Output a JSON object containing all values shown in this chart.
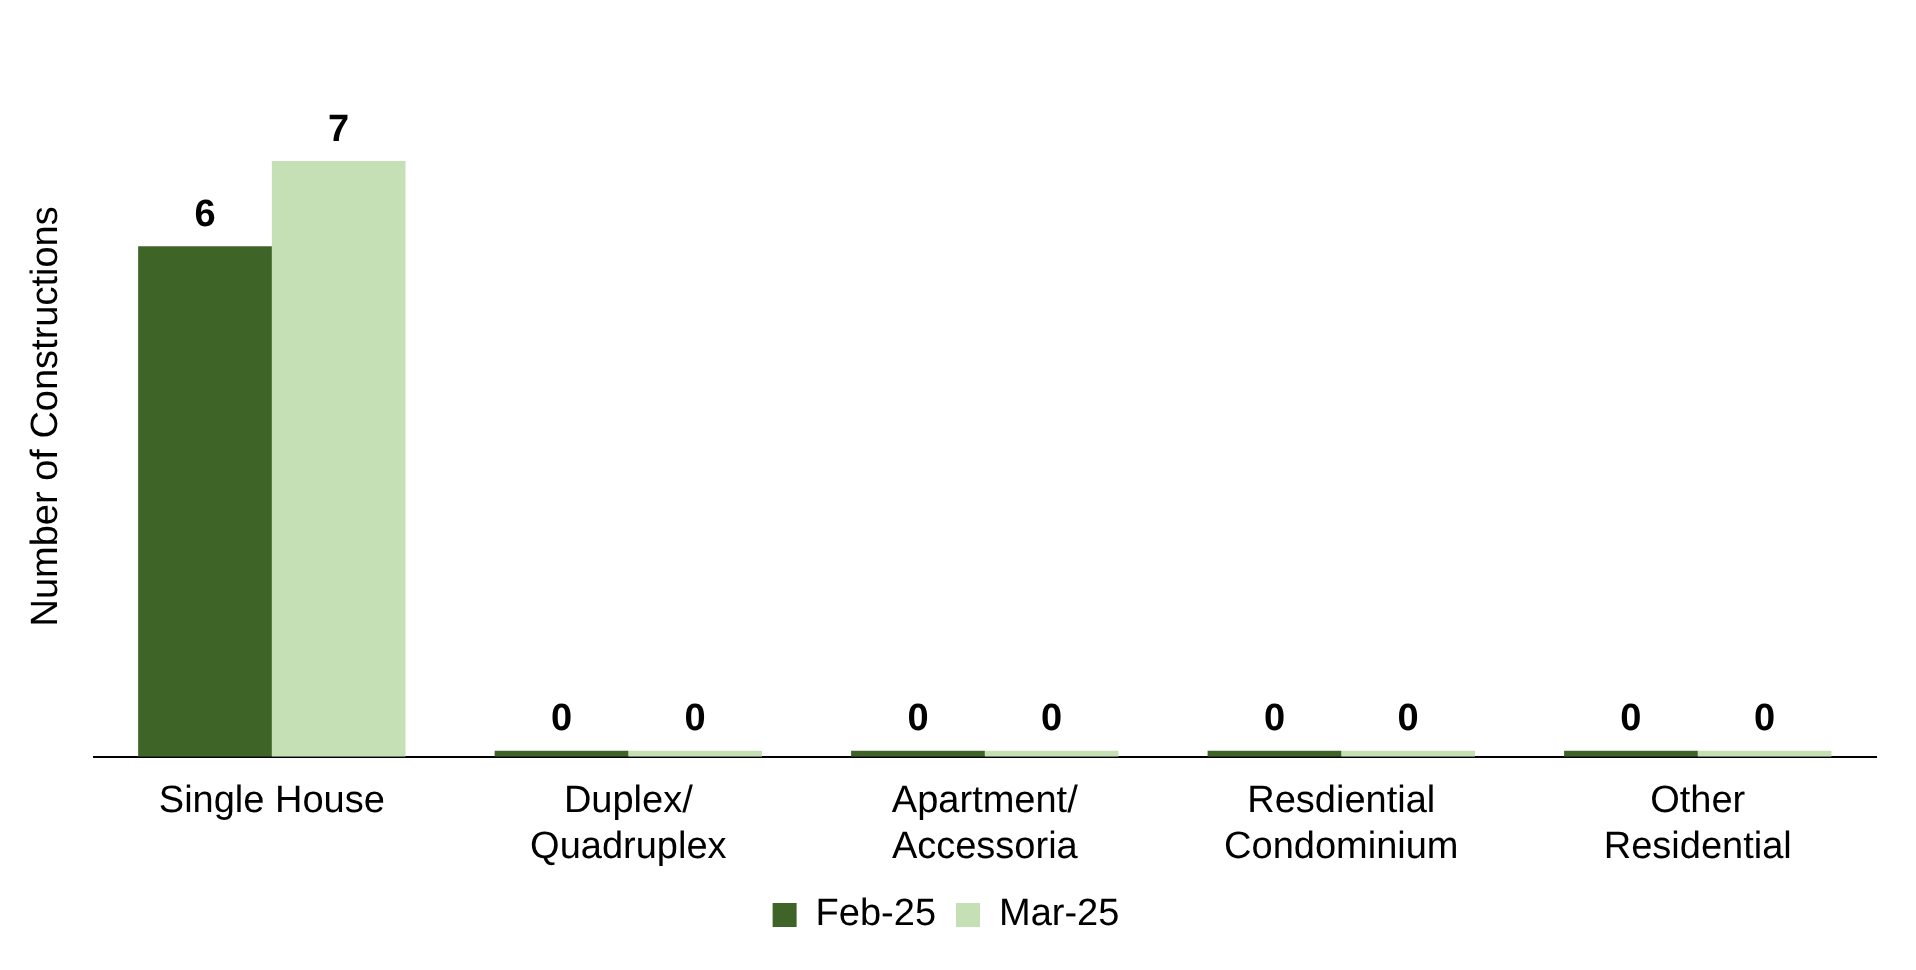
{
  "chart_data": {
    "type": "bar",
    "ylabel": "Number of Constructions",
    "categories": [
      "Single House",
      "Duplex/ Quadruplex",
      "Apartment/ Accessoria",
      "Resdiential Condominium",
      "Other Residential"
    ],
    "series": [
      {
        "name": "Feb-25",
        "color": "#3f6428",
        "values": [
          6,
          0,
          0,
          0,
          0
        ]
      },
      {
        "name": "Mar-25",
        "color": "#c5e0b4",
        "values": [
          7,
          0,
          0,
          0,
          0
        ]
      }
    ],
    "data_labels": true,
    "grid": false,
    "legend": "bottom"
  }
}
